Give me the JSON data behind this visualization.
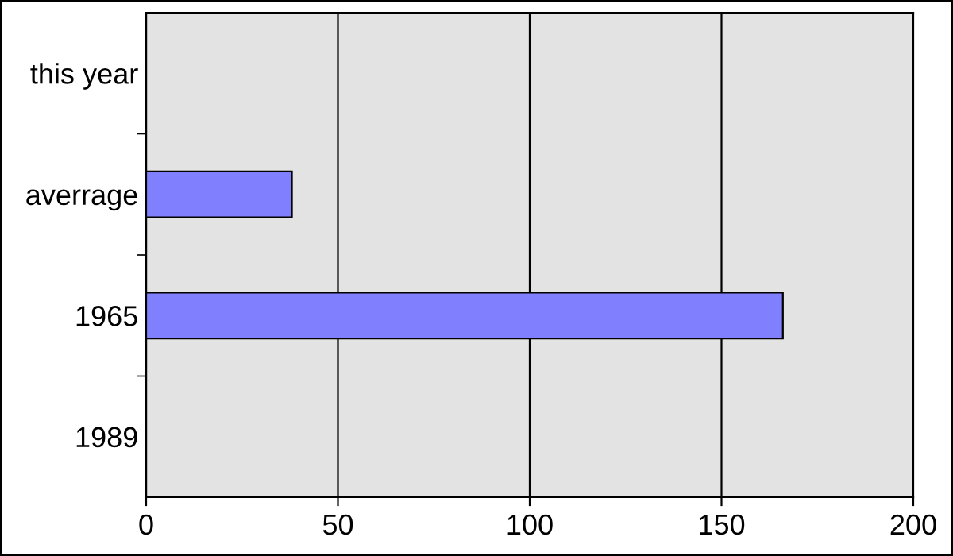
{
  "chart_data": {
    "type": "bar",
    "orientation": "horizontal",
    "categories": [
      "this year",
      "averrage",
      "1965",
      "1989"
    ],
    "series": [
      {
        "color": "#8080ff",
        "values": [
          null,
          38,
          166,
          null
        ]
      }
    ],
    "xlim": [
      0,
      200
    ],
    "xticks": [
      0,
      50,
      100,
      150,
      200
    ],
    "grid": "x"
  }
}
